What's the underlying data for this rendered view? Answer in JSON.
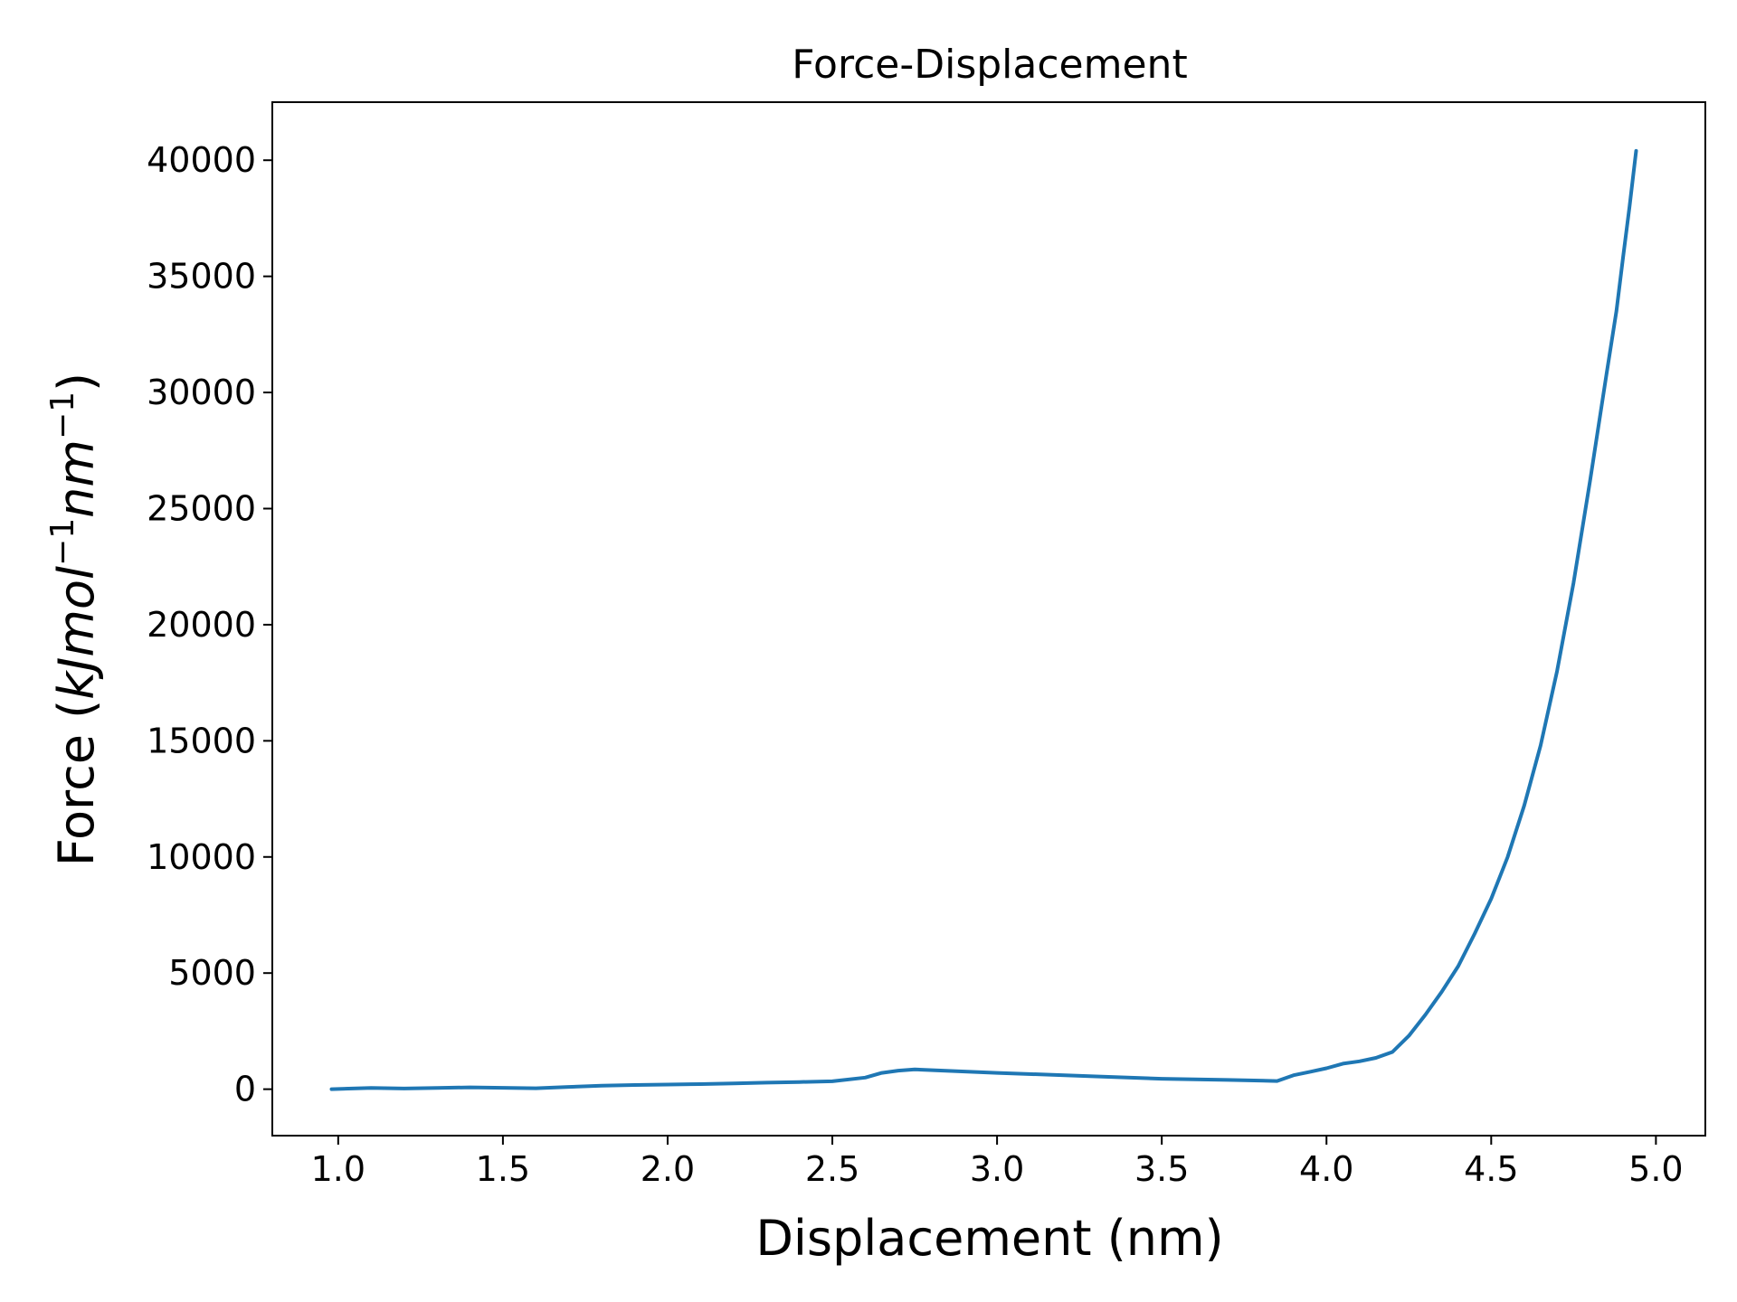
{
  "chart_data": {
    "type": "line",
    "title": "Force-Displacement",
    "xlabel": "Displacement (nm)",
    "ylabel": {
      "prefix": "Force (",
      "unit_main": "kJmol",
      "exp1": "−1",
      "unit_second": "nm",
      "exp2": "−1",
      "suffix": ")"
    },
    "xlim": [
      0.8,
      5.15
    ],
    "ylim": [
      -2000,
      42500
    ],
    "xticks": [
      1.0,
      1.5,
      2.0,
      2.5,
      3.0,
      3.5,
      4.0,
      4.5,
      5.0
    ],
    "xtick_labels": [
      "1.0",
      "1.5",
      "2.0",
      "2.5",
      "3.0",
      "3.5",
      "4.0",
      "4.5",
      "5.0"
    ],
    "yticks": [
      0,
      5000,
      10000,
      15000,
      20000,
      25000,
      30000,
      35000,
      40000
    ],
    "ytick_labels": [
      "0",
      "5000",
      "10000",
      "15000",
      "20000",
      "25000",
      "30000",
      "35000",
      "40000"
    ],
    "grid": false,
    "series": [
      {
        "color": "#1f77b4",
        "x": [
          0.98,
          1.1,
          1.2,
          1.3,
          1.4,
          1.5,
          1.6,
          1.7,
          1.8,
          1.9,
          2.0,
          2.1,
          2.2,
          2.3,
          2.4,
          2.5,
          2.6,
          2.65,
          2.7,
          2.75,
          3.0,
          3.3,
          3.5,
          3.7,
          3.85,
          3.9,
          3.95,
          4.0,
          4.05,
          4.1,
          4.15,
          4.2,
          4.25,
          4.3,
          4.35,
          4.4,
          4.45,
          4.5,
          4.55,
          4.6,
          4.65,
          4.7,
          4.75,
          4.8,
          4.85,
          4.88,
          4.9,
          4.92,
          4.94
        ],
        "y": [
          0,
          50,
          30,
          50,
          80,
          60,
          40,
          100,
          150,
          180,
          200,
          220,
          250,
          280,
          310,
          340,
          500,
          700,
          800,
          850,
          700,
          550,
          450,
          400,
          350,
          600,
          750,
          900,
          1100,
          1200,
          1350,
          1600,
          2300,
          3200,
          4200,
          5300,
          6700,
          8200,
          10000,
          12200,
          14800,
          18000,
          21800,
          26200,
          30800,
          33500,
          35800,
          38000,
          40400
        ]
      }
    ]
  }
}
